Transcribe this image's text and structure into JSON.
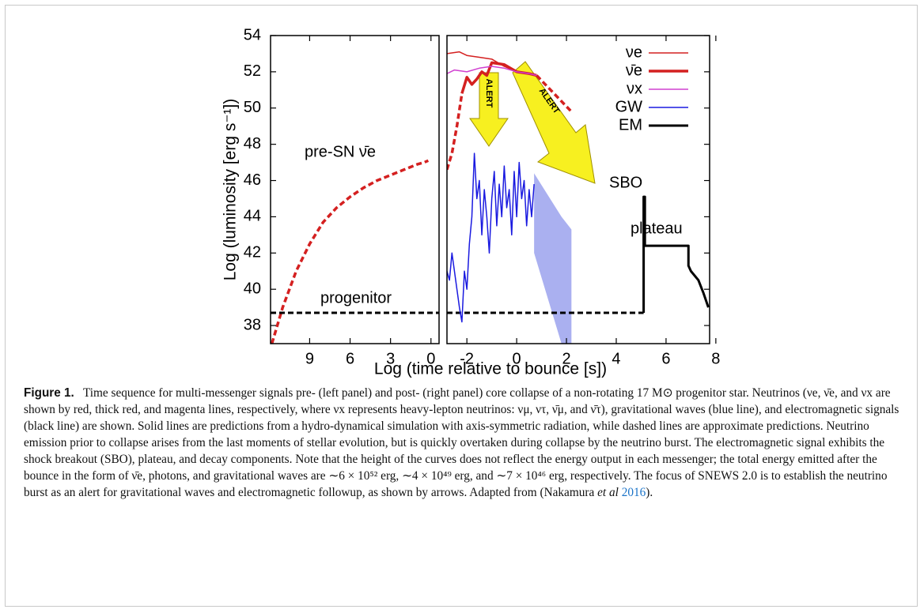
{
  "figure": {
    "ylabel": "Log (luminosity [erg s⁻¹])",
    "xlabel": "Log (time relative  to bounce [s])",
    "alerts": [
      "ALERT",
      "ALERT"
    ]
  },
  "chart_data": [
    {
      "type": "line",
      "xlim": [
        11.9,
        -0.6
      ],
      "ylim": [
        37,
        54
      ],
      "xticks": [
        9,
        6,
        3,
        0
      ],
      "yticks": [
        38,
        40,
        42,
        44,
        46,
        48,
        50,
        52,
        54
      ],
      "annotations": [
        "pre-SN ν̄e",
        "progenitor"
      ],
      "series": [
        {
          "color": "#d42020",
          "width": 3.5,
          "dash": true,
          "x": [
            11.8,
            11,
            10,
            9,
            8,
            7,
            6,
            5,
            4,
            3,
            2,
            1,
            0.5,
            0.2
          ],
          "values": [
            37,
            39,
            41,
            42.5,
            43.7,
            44.5,
            45.1,
            45.6,
            46,
            46.3,
            46.6,
            46.9,
            47,
            47.1
          ]
        },
        {
          "color": "#000000",
          "width": 3,
          "dash": true,
          "x": [
            11.9,
            -0.6
          ],
          "values": [
            38.7,
            38.7
          ]
        }
      ]
    },
    {
      "type": "line",
      "xlim": [
        -2.8,
        7.75
      ],
      "ylim": [
        37,
        54
      ],
      "xticks": [
        -2,
        0,
        2,
        4,
        6,
        8
      ],
      "annotations": [
        "SBO",
        "plateau"
      ],
      "band": {
        "color": "#aab0f0",
        "x": [
          0.7,
          1.8,
          2.2
        ],
        "upper": [
          46.4,
          44.0,
          43.3
        ],
        "lower": [
          42,
          37,
          37
        ]
      },
      "series": [
        {
          "color": "#000000",
          "width": 3,
          "dash": true,
          "x": [
            -2.8,
            5.1
          ],
          "values": [
            38.7,
            38.7
          ]
        },
        {
          "color": "#d42020",
          "width": 3.5,
          "dash": true,
          "x": [
            -2.8,
            -2.6,
            -2.4,
            -2.2
          ],
          "values": [
            46.6,
            47.5,
            49,
            50.8
          ]
        },
        {
          "color": "#d42020",
          "width": 3.5,
          "dash": true,
          "x": [
            0.8,
            1.5,
            2.2
          ],
          "values": [
            51.8,
            50.8,
            49.8
          ]
        },
        {
          "name": "νe",
          "color": "#d42020",
          "width": 1.5,
          "x": [
            -2.8,
            -2.3,
            -2,
            -1.5,
            -1,
            -0.5,
            0,
            0.5,
            0.8
          ],
          "values": [
            53,
            53.1,
            52.9,
            52.8,
            52.7,
            52.3,
            52,
            51.9,
            51.8
          ]
        },
        {
          "name": "ν̄e",
          "color": "#d42020",
          "width": 3.5,
          "x": [
            -2.2,
            -2.0,
            -1.8,
            -1.6,
            -1.4,
            -1.2,
            -1,
            -0.5,
            0,
            0.5,
            0.8
          ],
          "values": [
            50.8,
            51.7,
            51.3,
            51.6,
            52,
            51.8,
            52.5,
            52.4,
            52.0,
            51.9,
            51.8
          ]
        },
        {
          "name": "νx",
          "color": "#d040d0",
          "width": 1.5,
          "x": [
            -2.8,
            -2.5,
            -2,
            -1.5,
            -1,
            -0.5,
            0,
            0.5,
            0.8
          ],
          "values": [
            51.9,
            52.1,
            52.0,
            52.2,
            52.3,
            52.2,
            52.0,
            51.9,
            51.8
          ]
        },
        {
          "name": "GW",
          "color": "#1a1ae0",
          "width": 1.5,
          "x": [
            -2.8,
            -2.7,
            -2.6,
            -2.5,
            -2.4,
            -2.3,
            -2.2,
            -2.1,
            -2.0,
            -1.9,
            -1.8,
            -1.7,
            -1.6,
            -1.5,
            -1.4,
            -1.3,
            -1.2,
            -1.1,
            -1.0,
            -0.9,
            -0.8,
            -0.7,
            -0.6,
            -0.5,
            -0.4,
            -0.3,
            -0.2,
            -0.1,
            0,
            0.1,
            0.2,
            0.3,
            0.4,
            0.5,
            0.6,
            0.7
          ],
          "values": [
            41,
            40.5,
            42,
            41,
            40,
            39,
            38.2,
            41,
            40,
            42.5,
            44,
            47.5,
            45,
            46,
            43,
            45.5,
            44,
            42,
            45,
            46.5,
            43.5,
            45.8,
            44,
            46.8,
            44.5,
            45.5,
            43,
            46.5,
            44,
            47,
            45,
            46,
            43.5,
            45.5,
            44,
            45.8
          ]
        },
        {
          "name": "EM",
          "color": "#000000",
          "width": 3,
          "x": [
            5.1,
            5.1,
            5.15,
            5.15,
            6.9,
            6.9,
            7.0,
            7.3,
            7.5,
            7.7
          ],
          "values": [
            38.7,
            45.1,
            45.1,
            42.4,
            42.4,
            41.3,
            41.0,
            40.5,
            39.8,
            39.0
          ]
        }
      ]
    }
  ],
  "caption": {
    "label": "Figure 1.",
    "body": "Time sequence for multi-messenger signals pre- (left panel) and post- (right panel) core collapse of a non-rotating 17 M⊙ progenitor star. Neutrinos (νe, ν̄e, and νx are shown by red, thick red, and magenta lines, respectively, where νx represents heavy-lepton neutrinos: νμ, ντ, ν̄μ, and ν̄τ), gravitational waves (blue line), and electromagnetic signals (black line) are shown. Solid lines are predictions from a hydro-dynamical simulation with axis-symmetric radiation, while dashed lines are approximate predictions. Neutrino emission prior to collapse arises from the last moments of stellar evolution, but is quickly overtaken during collapse by the neutrino burst. The electromagnetic signal exhibits the shock breakout (SBO), plateau, and decay components. Note that the height of the curves does not reflect the energy output in each messenger; the total energy emitted after the bounce in the form of ν̄e, photons, and gravitational waves are ∼6 × 10⁵² erg, ∼4 × 10⁴⁹ erg, and ∼7 × 10⁴⁶ erg, respectively. The focus of SNEWS 2.0 is to establish the neutrino burst as an alert for gravitational waves and electromagnetic followup, as shown by arrows. Adapted from (Nakamura ",
    "etal": "et al",
    "year": "2016",
    "tail": ")."
  }
}
